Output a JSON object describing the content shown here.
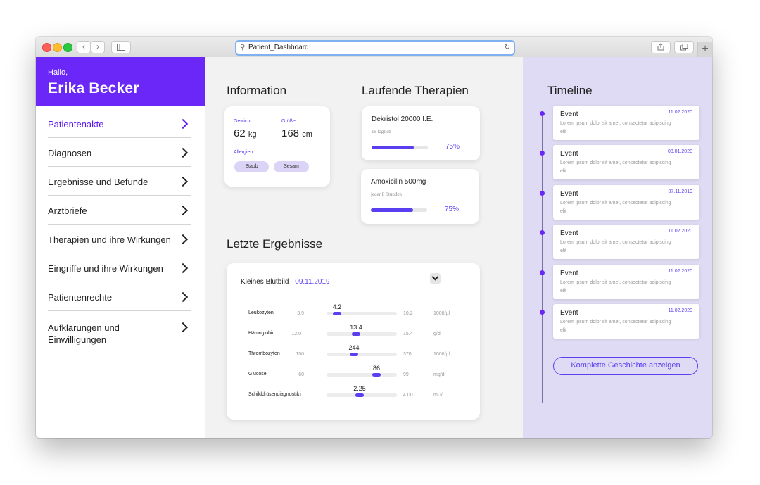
{
  "browser": {
    "url": "Patient_Dashboard"
  },
  "user": {
    "greeting": "Hallo,",
    "name": "Erika Becker"
  },
  "nav": [
    {
      "label": "Patientenakte",
      "active": true
    },
    {
      "label": "Diagnosen"
    },
    {
      "label": "Ergebnisse und Befunde"
    },
    {
      "label": "Arztbriefe"
    },
    {
      "label": "Therapien und ihre Wirkungen"
    },
    {
      "label": "Eingriffe und ihre Wirkungen"
    },
    {
      "label": "Patientenrechte"
    },
    {
      "label": "Aufklärungen und Einwilligungen"
    }
  ],
  "information": {
    "title": "Information",
    "weight_label": "Gewicht",
    "weight_value": "62",
    "weight_unit": "kg",
    "height_label": "Größe",
    "height_value": "168",
    "height_unit": "cm",
    "allergies_label": "Allergien",
    "allergies": [
      "Staub",
      "Sesam"
    ]
  },
  "therapies": {
    "title": "Laufende Therapien",
    "items": [
      {
        "name": "Dekristol  20000 I.E.",
        "frequency": "1x täglich",
        "progress_label": "75%",
        "progress": 0.75
      },
      {
        "name": "Amoxicilin 500mg",
        "frequency": "jeder 8 Stunden",
        "progress_label": "75%",
        "progress": 0.75
      }
    ]
  },
  "results": {
    "title": "Letzte Ergebnisse",
    "panel_name": "Kleines Blutbild",
    "separator": " · ",
    "panel_date": "09.11.2019",
    "rows": [
      {
        "name": "Leukozyten",
        "min": "3.9",
        "value": "4.2",
        "max": "10.2",
        "unit": "1000/µl",
        "position": 0.15
      },
      {
        "name": "Hämoglobin",
        "min": "12.0",
        "value": "13.4",
        "max": "15.4",
        "unit": "g/dl",
        "position": 0.42
      },
      {
        "name": "Thrombozyten",
        "min": "150",
        "value": "244",
        "max": "370",
        "unit": "1000/µl",
        "position": 0.39
      },
      {
        "name": "Glucose",
        "min": "60",
        "value": "86",
        "max": "99",
        "unit": "mg/dl",
        "position": 0.71
      },
      {
        "name": "Schilddrüsendiagnostik",
        "min": "0.40",
        "value": "2.25",
        "max": "4.00",
        "unit": "mU/l",
        "position": 0.47
      }
    ]
  },
  "timeline": {
    "title": "Timeline",
    "events": [
      {
        "title": "Event",
        "date": "11.02.2020",
        "desc": "Lorem ipsum dolor sit amet, consectetur adipiscing elit"
      },
      {
        "title": "Event",
        "date": "03.01.2020",
        "desc": "Lorem ipsum dolor sit amet, consectetur adipiscing elit"
      },
      {
        "title": "Event",
        "date": "07.11.2019",
        "desc": "Lorem ipsum dolor sit amet, consectetur adipiscing elit"
      },
      {
        "title": "Event",
        "date": "11.02.2020",
        "desc": "Lorem ipsum dolor sit amet, consectetur adipiscing elit"
      },
      {
        "title": "Event",
        "date": "11.02.2020",
        "desc": "Lorem ipsum dolor sit amet, consectetur adipiscing elit"
      },
      {
        "title": "Event",
        "date": "11.02.2020",
        "desc": "Lorem ipsum dolor sit amet, consectetur adipiscing elit"
      }
    ],
    "button_label": "Komplette Geschichte anzeigen"
  },
  "colors": {
    "accent": "#6a27f7",
    "accent_text": "#5a3ff0",
    "timeline_bg": "#e0dbf4",
    "tag_bg": "#dcd4f7"
  },
  "icons": {
    "traffic_lights": [
      "close-icon",
      "minimize-icon",
      "zoom-icon"
    ],
    "nav_back": "chevron-left-icon",
    "nav_forward": "chevron-right-icon",
    "sidebar_toggle": "sidebar-icon",
    "search": "search-icon",
    "reload": "reload-icon",
    "share": "share-icon",
    "tabs": "tabs-icon",
    "new_tab": "plus-icon",
    "nav_chevron": "chevron-right-icon",
    "dropdown": "chevron-down-icon"
  }
}
